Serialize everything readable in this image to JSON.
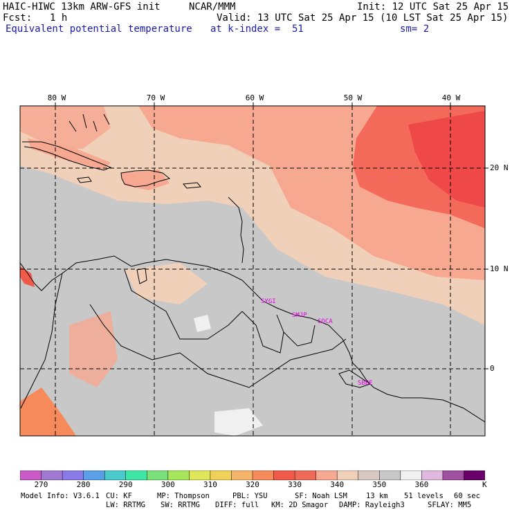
{
  "header": {
    "title": "HAIC-HIWC 13km ARW-GFS init",
    "org": "NCAR/MMM",
    "init": "Init: 12 UTC Sat 25 Apr 15",
    "fcst_label": "Fcst:",
    "fcst_value": "1 h",
    "valid": "Valid: 13 UTC Sat 25 Apr 15 (10 LST Sat 25 Apr 15)",
    "field": "Equivalent potential temperature",
    "level": "at k-index =  51",
    "smooth": "sm= 2"
  },
  "map": {
    "lon_labels": [
      "80 W",
      "70 W",
      "60 W",
      "50 W",
      "40 W"
    ],
    "lat_labels": [
      "20 N",
      "10 N",
      "0"
    ],
    "station_labels": [
      "SYGI",
      "SMJP",
      "SOCA",
      "SBBE"
    ],
    "colors": {
      "background_gray": "#c8c8c8",
      "band_light": "#f0d0b8",
      "band_salmon": "#f6a890",
      "band_red": "#f46a5a",
      "band_dark_red": "#ee4848",
      "station_label": "#dd00dd"
    }
  },
  "colorbar": {
    "colors": [
      "#c95ac8",
      "#a07ad0",
      "#8a7ae8",
      "#5aa0e8",
      "#4acaca",
      "#40e6a6",
      "#7ae07a",
      "#a6e65a",
      "#e0e65a",
      "#f0d25a",
      "#f6b46a",
      "#f68a5a",
      "#f05a48",
      "#f06a5a",
      "#f6a890",
      "#f0d0b8",
      "#d8c8c0",
      "#c8c8c8",
      "#f0f0f0",
      "#e0b8e0",
      "#a050a0",
      "#6a006a"
    ],
    "ticks": [
      "270",
      "280",
      "290",
      "300",
      "310",
      "320",
      "330",
      "340",
      "350",
      "360"
    ],
    "unit": "K"
  },
  "model_info": {
    "line1": [
      "Model Info: V3.6.1",
      "CU: KF",
      "MP: Thompson",
      "PBL: YSU",
      "SF: Noah LSM",
      "13 km",
      "51 levels",
      "60 sec"
    ],
    "line2": [
      "LW: RRTMG",
      "SW: RRTMG",
      "DIFF: full",
      "KM: 2D Smagor",
      "DAMP: Rayleigh3",
      "SFLAY: MM5"
    ]
  }
}
